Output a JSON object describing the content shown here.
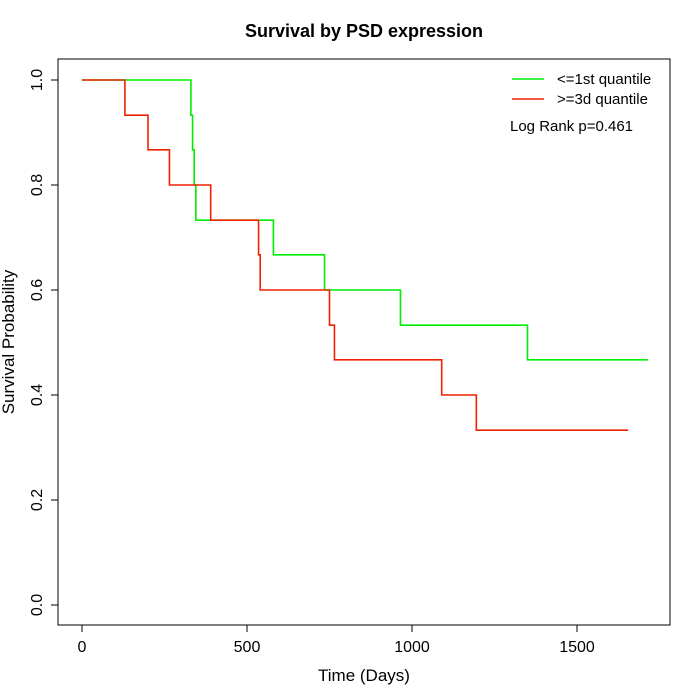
{
  "chart_data": {
    "type": "line",
    "step": true,
    "title": "Survival by PSD expression",
    "xlabel": "Time (Days)",
    "ylabel": "Survival Probability",
    "xlim": [
      0,
      1750
    ],
    "ylim": [
      0,
      1.0
    ],
    "xticks": [
      0,
      500,
      1000,
      1500
    ],
    "yticks": [
      0.0,
      0.2,
      0.4,
      0.6,
      0.8,
      1.0
    ],
    "xtick_labels": [
      "0",
      "500",
      "1000",
      "1500"
    ],
    "ytick_labels": [
      "0.0",
      "0.2",
      "0.4",
      "0.6",
      "0.8",
      "1.0"
    ],
    "grid": false,
    "legend_position": "top-right",
    "annotation": "Log Rank p=0.461",
    "series": [
      {
        "name": "<=1st quantile",
        "color": "#00ee00",
        "x": [
          0,
          330,
          335,
          340,
          345,
          580,
          735,
          965,
          1350,
          1715
        ],
        "y": [
          1.0,
          0.933,
          0.867,
          0.8,
          0.733,
          0.667,
          0.6,
          0.533,
          0.467,
          0.467
        ]
      },
      {
        "name": ">=3d quantile",
        "color": "#ee2200",
        "x": [
          0,
          130,
          200,
          265,
          390,
          535,
          540,
          750,
          765,
          1090,
          1195,
          1655
        ],
        "y": [
          1.0,
          0.933,
          0.867,
          0.8,
          0.733,
          0.667,
          0.6,
          0.533,
          0.467,
          0.4,
          0.333,
          0.333
        ]
      }
    ]
  }
}
